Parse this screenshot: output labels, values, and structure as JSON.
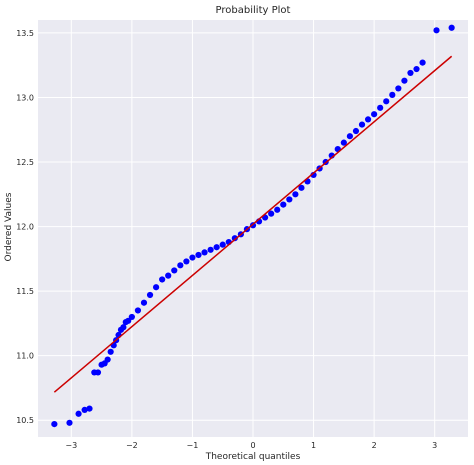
{
  "chart_data": {
    "type": "scatter",
    "title": "Probability Plot",
    "xlabel": "Theoretical quantiles",
    "ylabel": "Ordered Values",
    "xlim": [
      -3.55,
      3.55
    ],
    "ylim": [
      10.37,
      13.6
    ],
    "xticks": [
      -3,
      -2,
      -1,
      0,
      1,
      2,
      3
    ],
    "yticks": [
      10.5,
      11.0,
      11.5,
      12.0,
      12.5,
      13.0,
      13.5
    ],
    "ytick_labels": [
      "10.5",
      "11.0",
      "11.5",
      "12.0",
      "12.5",
      "13.0",
      "13.5"
    ],
    "grid": true,
    "background_color": "#eaeaf2",
    "point_color": "#0000ff",
    "line_color": "#cc0000",
    "fit_line": {
      "slope": 0.3967,
      "intercept": 12.018,
      "x_range": [
        -3.28,
        3.28
      ]
    },
    "series": [
      {
        "x": [
          -3.28,
          -3.03,
          -2.88,
          -2.78,
          -2.7,
          -2.62,
          -2.56,
          -2.5,
          -2.45,
          -2.4,
          -2.35,
          -2.3,
          -2.26,
          -2.22,
          -2.18,
          -2.14,
          -2.1,
          -2.06,
          -2.0,
          -1.9,
          -1.8,
          -1.7,
          -1.6,
          -1.5,
          -1.4,
          -1.3,
          -1.2,
          -1.1,
          -1.0,
          -0.9,
          -0.8,
          -0.7,
          -0.6,
          -0.5,
          -0.4,
          -0.3,
          -0.2,
          -0.1,
          0.0,
          0.1,
          0.2,
          0.3,
          0.4,
          0.5,
          0.6,
          0.7,
          0.8,
          0.9,
          1.0,
          1.1,
          1.2,
          1.3,
          1.4,
          1.5,
          1.6,
          1.7,
          1.8,
          1.9,
          2.0,
          2.1,
          2.2,
          2.3,
          2.4,
          2.5,
          2.6,
          2.7,
          2.8,
          3.03,
          3.28
        ],
        "y": [
          10.47,
          10.48,
          10.55,
          10.58,
          10.59,
          10.87,
          10.87,
          10.93,
          10.94,
          10.97,
          11.03,
          11.08,
          11.12,
          11.16,
          11.2,
          11.22,
          11.26,
          11.27,
          11.3,
          11.35,
          11.41,
          11.47,
          11.53,
          11.59,
          11.62,
          11.66,
          11.7,
          11.73,
          11.76,
          11.78,
          11.8,
          11.82,
          11.84,
          11.86,
          11.88,
          11.91,
          11.94,
          11.98,
          12.01,
          12.04,
          12.07,
          12.1,
          12.13,
          12.17,
          12.21,
          12.25,
          12.3,
          12.35,
          12.4,
          12.45,
          12.5,
          12.55,
          12.6,
          12.65,
          12.7,
          12.74,
          12.79,
          12.83,
          12.87,
          12.92,
          12.97,
          13.02,
          13.07,
          13.13,
          13.19,
          13.22,
          13.27,
          13.52,
          13.54
        ]
      }
    ]
  }
}
